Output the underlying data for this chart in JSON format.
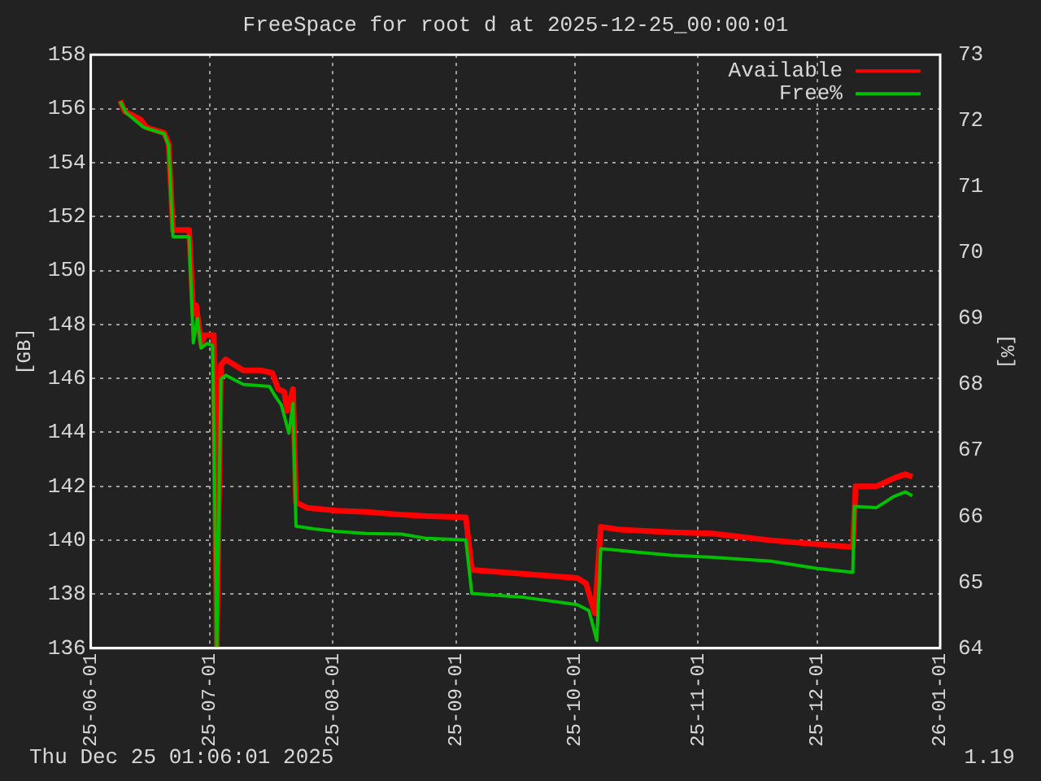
{
  "chart_data": {
    "type": "line",
    "title": "FreeSpace for root d at 2025-12-25_00:00:01",
    "ylabel": "[GB]",
    "y2label": "[%]",
    "xlim": [
      "2025-06-01",
      "2026-01-01"
    ],
    "xticks": [
      {
        "value": "2025-06-01",
        "label": "25-06-01"
      },
      {
        "value": "2025-07-01",
        "label": "25-07-01"
      },
      {
        "value": "2025-08-01",
        "label": "25-08-01"
      },
      {
        "value": "2025-09-01",
        "label": "25-09-01"
      },
      {
        "value": "2025-10-01",
        "label": "25-10-01"
      },
      {
        "value": "2025-11-01",
        "label": "25-11-01"
      },
      {
        "value": "2025-12-01",
        "label": "25-12-01"
      },
      {
        "value": "2026-01-01",
        "label": "26-01-01"
      }
    ],
    "ylim": [
      136,
      158
    ],
    "yticks": [
      136,
      138,
      140,
      142,
      144,
      146,
      148,
      150,
      152,
      154,
      156,
      158
    ],
    "y2lim": [
      64,
      73
    ],
    "y2ticks": [
      64,
      65,
      66,
      67,
      68,
      69,
      70,
      71,
      72,
      73
    ],
    "grid": true,
    "legend": "top right",
    "annotations": [
      "Thu Dec 25 01:06:01 2025",
      "1.19"
    ],
    "series": [
      {
        "name": "Available",
        "color": "#ff0000",
        "x": [
          "2025-06-08T10:00",
          "2025-06-09T13:00",
          "2025-06-13T13:00",
          "2025-06-15T01:00",
          "2025-06-19T12:00",
          "2025-06-20T15:00",
          "2025-06-21T17:00",
          "2025-06-25T19:00",
          "2025-06-26T20:00",
          "2025-06-27T14:00",
          "2025-06-28T19:00",
          "2025-06-29T19:00",
          "2025-07-02T00:00",
          "2025-07-02T18:00",
          "2025-07-03T19:00",
          "2025-07-05T00:00",
          "2025-07-07T05:00",
          "2025-07-09T10:00",
          "2025-07-13T20:00",
          "2025-07-16T18:00",
          "2025-07-18T06:00",
          "2025-07-19T18:00",
          "2025-07-20T12:00",
          "2025-07-21T23:00",
          "2025-07-22T17:00",
          "2025-07-25T15:00",
          "2025-08-02T01:00",
          "2025-08-09T10:00",
          "2025-08-18T07:00",
          "2025-08-24T04:00",
          "2025-09-03T12:00",
          "2025-09-05T00:00",
          "2025-09-18T07:00",
          "2025-10-01T14:00",
          "2025-10-03T19:00",
          "2025-10-06T00:00",
          "2025-10-07T12:00",
          "2025-10-11T22:00",
          "2025-10-25T05:00",
          "2025-11-04T12:00",
          "2025-11-19T07:00",
          "2025-12-01T02:00",
          "2025-12-10T00:00",
          "2025-12-10T17:00",
          "2025-12-15T22:00",
          "2025-12-20T07:00",
          "2025-12-23T07:00",
          "2025-12-25T00:00"
        ],
        "values": [
          156.3,
          155.9,
          155.6,
          155.3,
          155.1,
          154.7,
          151.5,
          151.5,
          148.4,
          148.7,
          147.3,
          147.6,
          147.6,
          136,
          146.5,
          146.7,
          146.5,
          146.3,
          146.3,
          146.2,
          145.6,
          145.5,
          144.8,
          145.6,
          141.4,
          141.2,
          141.1,
          141.05,
          140.95,
          140.9,
          140.85,
          138.9,
          138.75,
          138.6,
          138.4,
          137.3,
          140.5,
          140.4,
          140.3,
          140.25,
          140.0,
          139.85,
          139.75,
          142.0,
          142.0,
          142.3,
          142.45,
          142.35
        ]
      },
      {
        "name": "Free%",
        "color": "#00c000",
        "axis": "y2",
        "x": [
          "2025-06-08T10:00",
          "2025-06-09T21:00",
          "2025-06-14T07:00",
          "2025-06-19T12:00",
          "2025-06-20T15:00",
          "2025-06-21T17:00",
          "2025-06-25T19:00",
          "2025-06-26T20:00",
          "2025-06-27T21:00",
          "2025-06-28T19:00",
          "2025-06-30T06:00",
          "2025-07-01T17:00",
          "2025-07-02T18:00",
          "2025-07-03T19:00",
          "2025-07-05T00:00",
          "2025-07-09T10:00",
          "2025-07-16T01:00",
          "2025-07-17T12:00",
          "2025-07-19T00:00",
          "2025-07-20T22:00",
          "2025-07-21T23:00",
          "2025-07-22T17:00",
          "2025-07-27T03:00",
          "2025-08-02T01:00",
          "2025-08-09T10:00",
          "2025-08-18T07:00",
          "2025-08-24T04:00",
          "2025-09-03T12:00",
          "2025-09-05T00:00",
          "2025-09-18T07:00",
          "2025-10-01T14:00",
          "2025-10-04T12:00",
          "2025-10-06T12:00",
          "2025-10-07T12:00",
          "2025-10-17T19:00",
          "2025-10-25T05:00",
          "2025-11-04T12:00",
          "2025-11-19T07:00",
          "2025-12-01T02:00",
          "2025-12-10T00:00",
          "2025-12-10T10:00",
          "2025-12-15T22:00",
          "2025-12-20T07:00",
          "2025-12-23T07:00",
          "2025-12-25T00:00"
        ],
        "values": [
          72.29,
          72.12,
          71.9,
          71.8,
          71.62,
          70.24,
          70.24,
          68.63,
          69.0,
          68.55,
          68.62,
          68.59,
          64,
          68.08,
          68.14,
          68.0,
          67.97,
          67.82,
          67.69,
          67.26,
          67.71,
          65.85,
          65.81,
          65.77,
          65.74,
          65.73,
          65.67,
          65.64,
          64.83,
          64.77,
          64.66,
          64.57,
          64.12,
          65.51,
          65.45,
          65.41,
          65.38,
          65.32,
          65.21,
          65.15,
          66.15,
          66.13,
          66.3,
          66.37,
          66.31
        ]
      }
    ]
  }
}
